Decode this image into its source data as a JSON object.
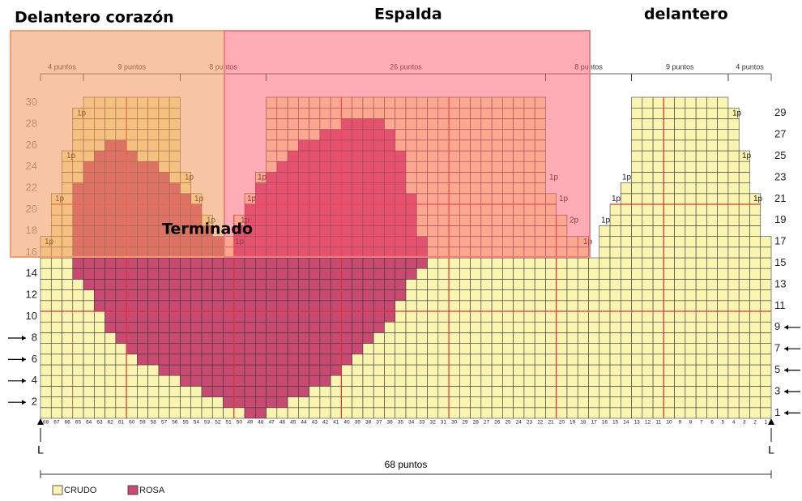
{
  "titles": {
    "front_left": "Delantero corazón",
    "back": "Espalda",
    "front_right": "delantero",
    "finished": "Terminado"
  },
  "top_measures": [
    "4 puntos",
    "9 puntos",
    "8 puntos",
    "26 puntos",
    "8 puntos",
    "9 puntos",
    "4 puntos"
  ],
  "step_labels": [
    "1p",
    "1p",
    "1p",
    "1p",
    "1p",
    "1p",
    "1p",
    "1p",
    "1p",
    "1p",
    "1p",
    "1p",
    "1p",
    "2p",
    "1p",
    "1p",
    "1p",
    "1p",
    "1p",
    "1p",
    "1p"
  ],
  "row_numbers_left": [
    2,
    4,
    6,
    8,
    10,
    12,
    14,
    16,
    18,
    20,
    22,
    24,
    26,
    28,
    30
  ],
  "row_numbers_right": [
    1,
    3,
    5,
    7,
    9,
    11,
    13,
    15,
    17,
    19,
    21,
    23,
    25,
    27,
    29
  ],
  "stitch_numbers": [
    68,
    67,
    66,
    65,
    64,
    63,
    62,
    61,
    60,
    59,
    58,
    57,
    56,
    55,
    54,
    53,
    52,
    51,
    50,
    49,
    48,
    47,
    46,
    45,
    44,
    43,
    42,
    41,
    40,
    39,
    38,
    37,
    36,
    35,
    34,
    33,
    32,
    31,
    30,
    29,
    28,
    27,
    26,
    25,
    24,
    23,
    22,
    21,
    20,
    19,
    18,
    17,
    16,
    15,
    14,
    13,
    12,
    11,
    10,
    9,
    8,
    7,
    6,
    5,
    4,
    3,
    2,
    1
  ],
  "edge_labels": [
    "L",
    "L"
  ],
  "total_width": "68 puntos",
  "legend": [
    {
      "name": "CRUDO",
      "color": "#f9f5b0"
    },
    {
      "name": "ROSA",
      "color": "#c84a73"
    }
  ]
}
